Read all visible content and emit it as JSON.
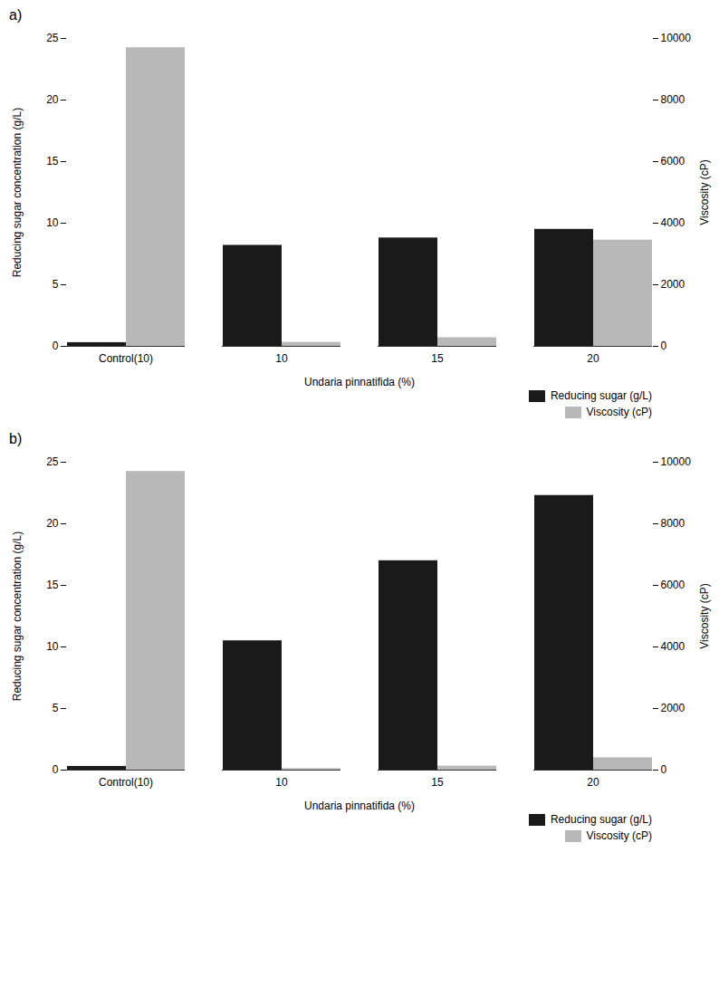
{
  "chart_data": [
    {
      "type": "bar",
      "title": "a)",
      "categories": [
        "Control(10)",
        "10",
        "15",
        "20"
      ],
      "series": [
        {
          "name": "Reducing sugar (g/L)",
          "color": "#1a1a1a",
          "values": [
            0.3,
            8.2,
            8.8,
            9.5
          ]
        },
        {
          "name": "Viscosity (cP)",
          "color": "#b8b8b8",
          "values": [
            9700,
            130,
            280,
            3450
          ],
          "axis": "y2"
        }
      ],
      "xlabel": "Undaria pinnatifida (%)",
      "ylabel": "Reducing sugar concentration (g/L)",
      "y2label": "Viscosity (cP)",
      "ylim": [
        0,
        25
      ],
      "yticks": [
        0,
        5,
        10,
        15,
        20,
        25
      ],
      "y2lim": [
        0,
        10000
      ],
      "y2ticks": [
        0,
        2000,
        4000,
        6000,
        8000,
        10000
      ],
      "legend": "lower right"
    },
    {
      "type": "bar",
      "title": "b)",
      "categories": [
        "Control(10)",
        "10",
        "15",
        "20"
      ],
      "series": [
        {
          "name": "Reducing sugar (g/L)",
          "color": "#1a1a1a",
          "values": [
            0.3,
            10.5,
            17.0,
            22.3
          ]
        },
        {
          "name": "Viscosity (cP)",
          "color": "#b8b8b8",
          "values": [
            9700,
            50,
            130,
            400
          ],
          "axis": "y2"
        }
      ],
      "xlabel": "Undaria pinnatifida (%)",
      "ylabel": "Reducing sugar concentration (g/L)",
      "y2label": "Viscosity (cP)",
      "ylim": [
        0,
        25
      ],
      "yticks": [
        0,
        5,
        10,
        15,
        20,
        25
      ],
      "y2lim": [
        0,
        10000
      ],
      "y2ticks": [
        0,
        2000,
        4000,
        6000,
        8000,
        10000
      ],
      "legend": "lower right"
    }
  ]
}
